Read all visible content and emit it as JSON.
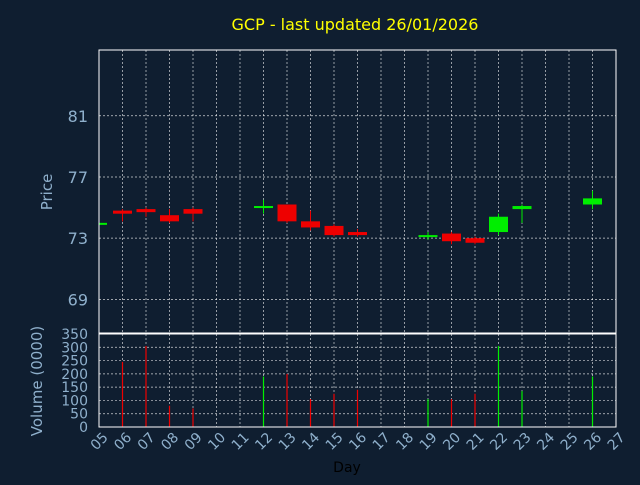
{
  "chart_data": {
    "type": "candlestick",
    "title": "GCP - last updated 26/01/2026",
    "xlabel": "Day",
    "price_ylabel": "Price",
    "volume_ylabel": "Volume (0000)",
    "x_ticks": [
      "05",
      "06",
      "07",
      "08",
      "09",
      "10",
      "11",
      "12",
      "13",
      "14",
      "15",
      "16",
      "17",
      "18",
      "19",
      "20",
      "21",
      "22",
      "23",
      "24",
      "25",
      "26",
      "27"
    ],
    "price_ticks": [
      69,
      73,
      77,
      81
    ],
    "price_ylim": [
      66.8,
      85.3
    ],
    "volume_ticks": [
      0,
      50,
      100,
      150,
      200,
      250,
      300,
      350
    ],
    "volume_ylim": [
      0,
      350
    ],
    "colors": {
      "background": "#0f1e30",
      "up": "#00ee00",
      "down": "#ee0000",
      "text": "#8fb0cc",
      "title": "#ffff00",
      "grid": "#ffffff"
    },
    "candles": [
      {
        "day": "05",
        "open": 74.0,
        "close": 74.0,
        "high": 74.0,
        "low": 74.0
      },
      {
        "day": "06",
        "open": 74.8,
        "close": 74.6,
        "high": 74.9,
        "low": 74.1
      },
      {
        "day": "07",
        "open": 74.9,
        "close": 74.7,
        "high": 75.0,
        "low": 74.4
      },
      {
        "day": "08",
        "open": 74.5,
        "close": 74.1,
        "high": 74.9,
        "low": 74.0
      },
      {
        "day": "09",
        "open": 74.9,
        "close": 74.6,
        "high": 75.0,
        "low": 74.1
      },
      {
        "day": "12",
        "open": 75.0,
        "close": 75.1,
        "high": 75.5,
        "low": 74.6
      },
      {
        "day": "13",
        "open": 75.2,
        "close": 74.1,
        "high": 75.2,
        "low": 74.0
      },
      {
        "day": "14",
        "open": 74.1,
        "close": 73.7,
        "high": 74.8,
        "low": 73.5
      },
      {
        "day": "15",
        "open": 73.8,
        "close": 73.2,
        "high": 73.9,
        "low": 73.1
      },
      {
        "day": "16",
        "open": 73.4,
        "close": 73.2,
        "high": 73.6,
        "low": 73.1
      },
      {
        "day": "19",
        "open": 73.1,
        "close": 73.2,
        "high": 73.4,
        "low": 72.9
      },
      {
        "day": "20",
        "open": 73.3,
        "close": 72.8,
        "high": 73.4,
        "low": 72.6
      },
      {
        "day": "21",
        "open": 73.0,
        "close": 72.7,
        "high": 73.1,
        "low": 72.6
      },
      {
        "day": "22",
        "open": 73.4,
        "close": 74.4,
        "high": 74.6,
        "low": 73.2
      },
      {
        "day": "23",
        "open": 74.9,
        "close": 75.1,
        "high": 75.2,
        "low": 74.0
      },
      {
        "day": "26",
        "open": 75.2,
        "close": 75.6,
        "high": 76.1,
        "low": 74.9
      }
    ],
    "volumes": [
      {
        "day": "06",
        "value": 245,
        "direction": "down"
      },
      {
        "day": "07",
        "value": 305,
        "direction": "down"
      },
      {
        "day": "08",
        "value": 80,
        "direction": "down"
      },
      {
        "day": "09",
        "value": 70,
        "direction": "down"
      },
      {
        "day": "12",
        "value": 190,
        "direction": "up"
      },
      {
        "day": "13",
        "value": 200,
        "direction": "down"
      },
      {
        "day": "14",
        "value": 105,
        "direction": "down"
      },
      {
        "day": "15",
        "value": 125,
        "direction": "down"
      },
      {
        "day": "16",
        "value": 140,
        "direction": "down"
      },
      {
        "day": "19",
        "value": 105,
        "direction": "up"
      },
      {
        "day": "20",
        "value": 105,
        "direction": "down"
      },
      {
        "day": "21",
        "value": 125,
        "direction": "down"
      },
      {
        "day": "22",
        "value": 305,
        "direction": "up"
      },
      {
        "day": "23",
        "value": 135,
        "direction": "up"
      },
      {
        "day": "26",
        "value": 190,
        "direction": "up"
      }
    ]
  }
}
